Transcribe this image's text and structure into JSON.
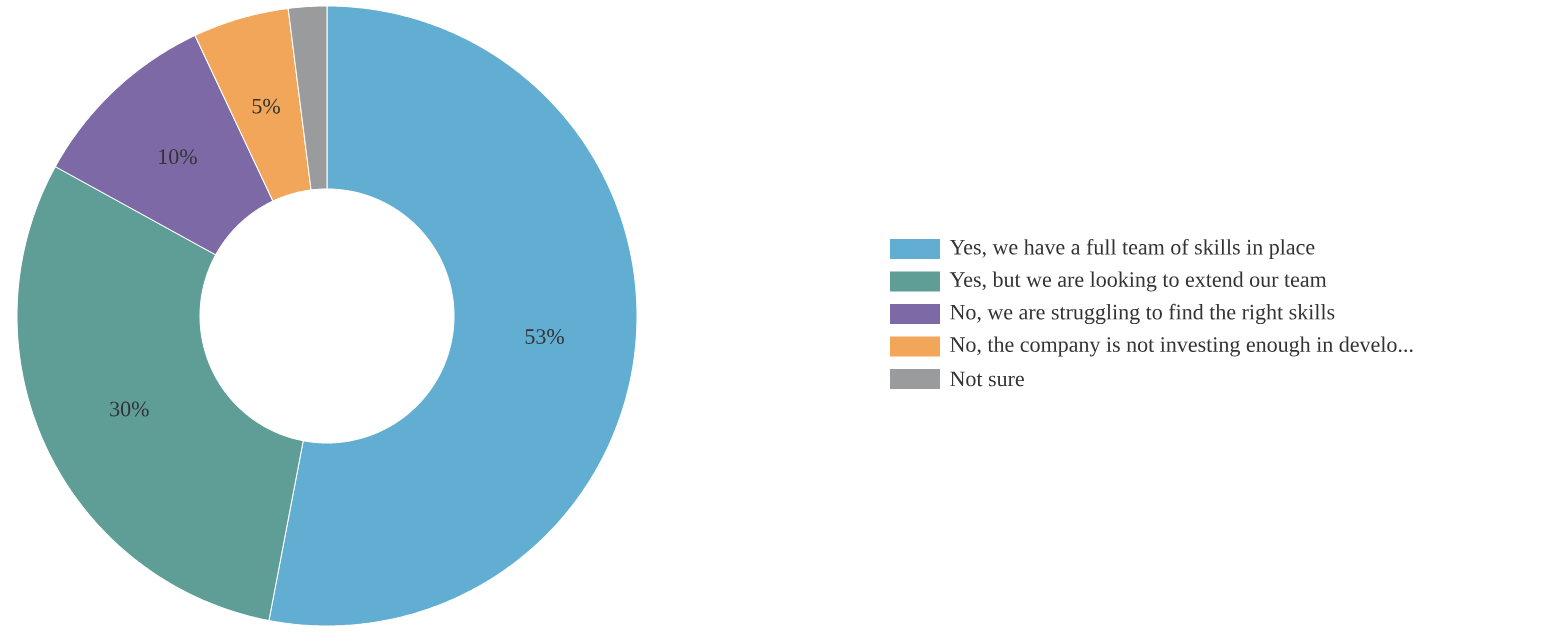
{
  "chart_data": {
    "type": "donut",
    "categories": [
      "Yes, we have a full team of skills in place",
      "Yes, but we are looking to extend our team",
      "No, we are struggling to find the right skills",
      "No, the company is not investing enough in develo...",
      "Not sure"
    ],
    "values": [
      53,
      30,
      10,
      5,
      2
    ],
    "colors": [
      "#62aed3",
      "#5f9e96",
      "#7d69a6",
      "#f2a65a",
      "#9a9b9d"
    ],
    "value_labels": [
      "53%",
      "30%",
      "10%",
      "5%",
      null
    ],
    "legend": "right"
  }
}
